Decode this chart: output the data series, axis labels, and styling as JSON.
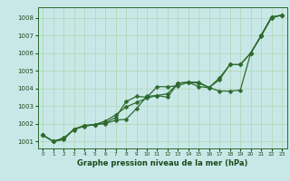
{
  "x": [
    0,
    1,
    2,
    3,
    4,
    5,
    6,
    7,
    8,
    9,
    10,
    11,
    12,
    13,
    14,
    15,
    16,
    17,
    18,
    19,
    20,
    21,
    22,
    23
  ],
  "series1": [
    1001.35,
    1001.0,
    1001.1,
    1001.7,
    1001.85,
    1001.95,
    1002.0,
    1002.2,
    1002.25,
    1002.85,
    1003.55,
    1003.6,
    1003.5,
    1004.3,
    1004.35,
    1004.1,
    1004.05,
    1003.85,
    1003.85,
    1003.9,
    1006.0,
    1006.95,
    1008.0,
    1008.15
  ],
  "series2": [
    1001.35,
    1001.0,
    1001.15,
    1001.7,
    1001.9,
    1001.95,
    1002.05,
    1002.35,
    1003.25,
    1003.55,
    1003.5,
    1004.1,
    1004.1,
    1004.15,
    1004.35,
    1004.35,
    1004.05,
    1004.6,
    1005.35,
    1005.35,
    1006.0,
    1007.0,
    1008.05,
    1008.15
  ],
  "series3": [
    1001.35,
    1001.0,
    1001.2,
    1001.65,
    1001.9,
    1001.95,
    1002.15,
    1002.5,
    1002.95,
    1003.2,
    1003.45,
    1003.6,
    1003.7,
    1004.3,
    1004.35,
    1004.3,
    1004.05,
    1004.5,
    1005.35,
    1005.35,
    1006.0,
    1007.0,
    1008.05,
    1008.15
  ],
  "bg_color": "#c8e8e8",
  "line_color": "#2d6a2d",
  "grid_color": "#b0d4b0",
  "xlabel": "Graphe pression niveau de la mer (hPa)",
  "ylim": [
    1000.6,
    1008.6
  ],
  "yticks": [
    1001,
    1002,
    1003,
    1004,
    1005,
    1006,
    1007,
    1008
  ],
  "xlim": [
    -0.5,
    23.5
  ],
  "label_color": "#1a4a1a",
  "marker_size": 2.5,
  "linewidth": 0.9
}
